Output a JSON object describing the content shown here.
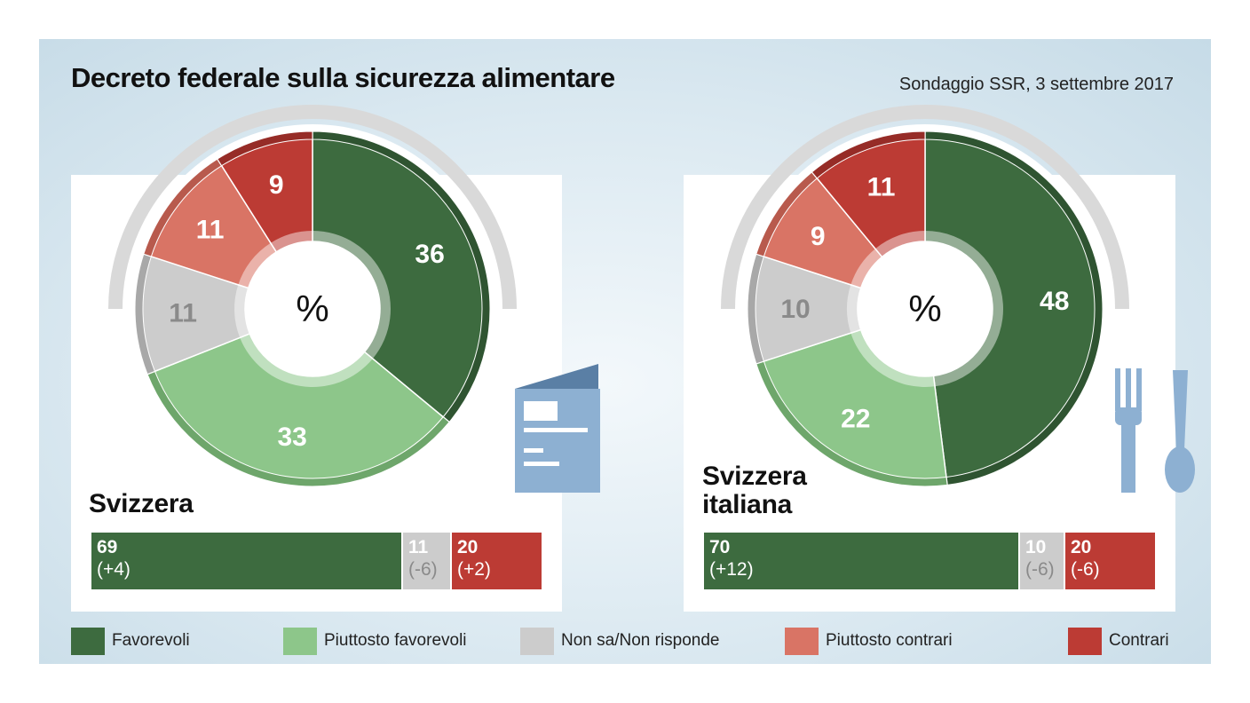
{
  "title": "Decreto federale sulla sicurezza alimentare",
  "source": "Sondaggio SSR, 3 settembre 2017",
  "colors": {
    "favorevoli": "#3d6b3f",
    "piuttosto_favorevoli": "#8dc68a",
    "non_sa": "#cccccc",
    "piuttosto_contrari": "#d97465",
    "contrari": "#bc3b34"
  },
  "donut_center_label": "%",
  "legend": [
    {
      "label": "Favorevoli",
      "color": "#3d6b3f"
    },
    {
      "label": "Piuttosto favorevoli",
      "color": "#8dc68a"
    },
    {
      "label": "Non sa/Non risponde",
      "color": "#cccccc"
    },
    {
      "label": "Piuttosto contrari",
      "color": "#d97465"
    },
    {
      "label": "Contrari",
      "color": "#bc3b34"
    }
  ],
  "chart_data": [
    {
      "type": "pie",
      "region": "Svizzera",
      "categories": [
        "Favorevoli",
        "Piuttosto favorevoli",
        "Non sa/Non risponde",
        "Piuttosto contrari",
        "Contrari"
      ],
      "values": [
        36,
        33,
        11,
        11,
        9
      ],
      "summary": [
        {
          "label": "Favorevoli",
          "value": "69",
          "change": "(+4)"
        },
        {
          "label": "Non sa/Non risponde",
          "value": "11",
          "change": "(-6)"
        },
        {
          "label": "Contrari",
          "value": "20",
          "change": "(+2)"
        }
      ],
      "icon": "document-icon"
    },
    {
      "type": "pie",
      "region": "Svizzera italiana",
      "region_lines": [
        "Svizzera",
        "italiana"
      ],
      "categories": [
        "Favorevoli",
        "Piuttosto favorevoli",
        "Non sa/Non risponde",
        "Piuttosto contrari",
        "Contrari"
      ],
      "values": [
        48,
        22,
        10,
        9,
        11
      ],
      "summary": [
        {
          "label": "Favorevoli",
          "value": "70",
          "change": "(+12)"
        },
        {
          "label": "Non sa/Non risponde",
          "value": "10",
          "change": "(-6)"
        },
        {
          "label": "Contrari",
          "value": "20",
          "change": "(-6)"
        }
      ],
      "icon": "fork-spoon-icon"
    }
  ]
}
